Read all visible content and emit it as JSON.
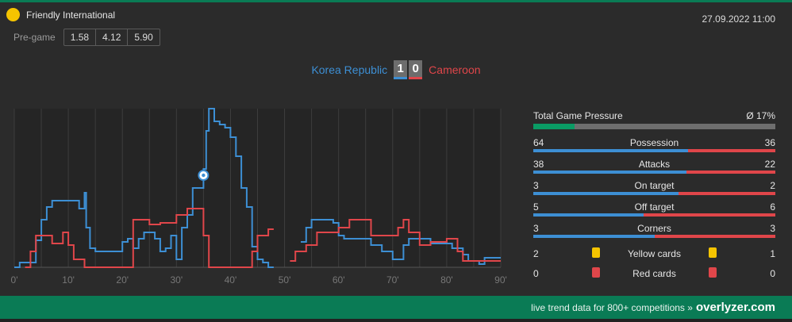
{
  "competition": {
    "name": "Friendly International"
  },
  "datetime": "27.09.2022 11:00",
  "pregame": {
    "label": "Pre-game",
    "odds": [
      "1.58",
      "4.12",
      "5.90"
    ]
  },
  "match": {
    "home_team": "Korea Republic",
    "away_team": "Cameroon",
    "home_score": "1",
    "away_score": "0"
  },
  "colors": {
    "home": "#3d8fd4",
    "away": "#e0464a",
    "brand": "#0a7b55",
    "yellow": "#f5c400"
  },
  "stats": {
    "pressure": {
      "label": "Total Game Pressure",
      "value_label": "Ø 17%",
      "value": 17
    },
    "rows": [
      {
        "name": "Possession",
        "home": "64",
        "away": "36"
      },
      {
        "name": "Attacks",
        "home": "38",
        "away": "22"
      },
      {
        "name": "On target",
        "home": "3",
        "away": "2"
      },
      {
        "name": "Off target",
        "home": "5",
        "away": "6"
      },
      {
        "name": "Corners",
        "home": "3",
        "away": "3"
      }
    ],
    "cards": [
      {
        "name": "Yellow cards",
        "home": "2",
        "away": "1",
        "color": "yellow"
      },
      {
        "name": "Red cards",
        "home": "0",
        "away": "0",
        "color": "red"
      }
    ]
  },
  "chart_data": {
    "type": "line",
    "x_ticks": [
      "0'",
      "10'",
      "20'",
      "30'",
      "40'",
      "50'",
      "60'",
      "70'",
      "80'",
      "90'"
    ],
    "xlim": [
      0,
      90
    ],
    "ylim": [
      0,
      100
    ],
    "grid": true,
    "goal_events": [
      {
        "minute": 35,
        "team": "home",
        "y": 58
      }
    ],
    "series": [
      {
        "team": "home",
        "points": [
          [
            0,
            0
          ],
          [
            1,
            0
          ],
          [
            1,
            3
          ],
          [
            4,
            3
          ],
          [
            4,
            17
          ],
          [
            5,
            17
          ],
          [
            5,
            30
          ],
          [
            6,
            30
          ],
          [
            6,
            38
          ],
          [
            7,
            38
          ],
          [
            7,
            42
          ],
          [
            12,
            42
          ],
          [
            12,
            37
          ],
          [
            13,
            37
          ],
          [
            13,
            47
          ],
          [
            13.3,
            47
          ],
          [
            13.3,
            25
          ],
          [
            14,
            25
          ],
          [
            14,
            12
          ],
          [
            15,
            12
          ],
          [
            15,
            10
          ],
          [
            20,
            10
          ],
          [
            20,
            16
          ],
          [
            21,
            16
          ],
          [
            21,
            18
          ],
          [
            22,
            18
          ],
          [
            22,
            12
          ],
          [
            23,
            12
          ],
          [
            23,
            18
          ],
          [
            24,
            18
          ],
          [
            24,
            22
          ],
          [
            26,
            22
          ],
          [
            26,
            18
          ],
          [
            27,
            18
          ],
          [
            27,
            10
          ],
          [
            28,
            10
          ],
          [
            28,
            12
          ],
          [
            29,
            12
          ],
          [
            29,
            20
          ],
          [
            30,
            20
          ],
          [
            30,
            5
          ],
          [
            31,
            5
          ],
          [
            31,
            25
          ],
          [
            32,
            25
          ],
          [
            32,
            33
          ],
          [
            33,
            33
          ],
          [
            33,
            50
          ],
          [
            35,
            50
          ],
          [
            35,
            62
          ],
          [
            35.5,
            62
          ],
          [
            35.5,
            86
          ],
          [
            36,
            86
          ],
          [
            36,
            100
          ],
          [
            37,
            100
          ],
          [
            37,
            92
          ],
          [
            38,
            92
          ],
          [
            38,
            90
          ],
          [
            39,
            90
          ],
          [
            39,
            88
          ],
          [
            40,
            88
          ],
          [
            40,
            82
          ],
          [
            41,
            82
          ],
          [
            41,
            70
          ],
          [
            42,
            70
          ],
          [
            42,
            50
          ],
          [
            43,
            50
          ],
          [
            43,
            38
          ],
          [
            44,
            38
          ],
          [
            44,
            13
          ],
          [
            45,
            13
          ],
          [
            45,
            5
          ],
          [
            46,
            5
          ],
          [
            46,
            3
          ],
          [
            47,
            3
          ],
          [
            47,
            0
          ],
          [
            48,
            0
          ]
        ],
        "segments_after_break": [
          [
            [
              53,
              16
            ],
            [
              54,
              16
            ],
            [
              54,
              25
            ],
            [
              55,
              25
            ],
            [
              55,
              30
            ],
            [
              59,
              30
            ],
            [
              59,
              28
            ],
            [
              60,
              28
            ],
            [
              60,
              20
            ],
            [
              61,
              20
            ],
            [
              61,
              18
            ],
            [
              66,
              18
            ],
            [
              66,
              14
            ],
            [
              68,
              14
            ],
            [
              68,
              10
            ],
            [
              70,
              10
            ],
            [
              70,
              5
            ],
            [
              72,
              5
            ],
            [
              72,
              14
            ],
            [
              73,
              14
            ],
            [
              73,
              18
            ],
            [
              77,
              18
            ],
            [
              77,
              15
            ],
            [
              81,
              15
            ],
            [
              81,
              12
            ],
            [
              83,
              12
            ],
            [
              83,
              8
            ],
            [
              84,
              8
            ],
            [
              84,
              4
            ],
            [
              86,
              4
            ],
            [
              86,
              2
            ],
            [
              87,
              2
            ],
            [
              87,
              6
            ],
            [
              90,
              6
            ]
          ]
        ]
      },
      {
        "team": "away",
        "points": [
          [
            2,
            0
          ],
          [
            3,
            0
          ],
          [
            3,
            10
          ],
          [
            4,
            10
          ],
          [
            4,
            20
          ],
          [
            7,
            20
          ],
          [
            7,
            15
          ],
          [
            9,
            15
          ],
          [
            9,
            22
          ],
          [
            10,
            22
          ],
          [
            10,
            14
          ],
          [
            11,
            14
          ],
          [
            11,
            5
          ],
          [
            13,
            5
          ],
          [
            13,
            0
          ],
          [
            22,
            0
          ],
          [
            22,
            30
          ],
          [
            25,
            30
          ],
          [
            25,
            27
          ],
          [
            27,
            27
          ],
          [
            27,
            28
          ],
          [
            30,
            28
          ],
          [
            30,
            33
          ],
          [
            32,
            33
          ],
          [
            32,
            37
          ],
          [
            35,
            37
          ],
          [
            35,
            20
          ],
          [
            36,
            20
          ],
          [
            36,
            0
          ],
          [
            44,
            0
          ],
          [
            44,
            10
          ],
          [
            45,
            10
          ],
          [
            45,
            20
          ],
          [
            47,
            20
          ],
          [
            47,
            24
          ],
          [
            48,
            24
          ]
        ],
        "segments_after_break": [
          [
            [
              51,
              4
            ],
            [
              52,
              4
            ],
            [
              52,
              10
            ],
            [
              54,
              10
            ],
            [
              54,
              14
            ],
            [
              56,
              14
            ],
            [
              56,
              22
            ],
            [
              60,
              22
            ],
            [
              60,
              25
            ],
            [
              62,
              25
            ],
            [
              62,
              30
            ],
            [
              66,
              30
            ],
            [
              66,
              20
            ],
            [
              71,
              20
            ],
            [
              71,
              25
            ],
            [
              72,
              25
            ],
            [
              72,
              30
            ],
            [
              73,
              30
            ],
            [
              73,
              22
            ],
            [
              75,
              22
            ],
            [
              75,
              14
            ],
            [
              77,
              14
            ],
            [
              77,
              16
            ],
            [
              80,
              16
            ],
            [
              80,
              18
            ],
            [
              82,
              18
            ],
            [
              82,
              10
            ],
            [
              83,
              10
            ],
            [
              83,
              4
            ],
            [
              90,
              4
            ]
          ]
        ]
      }
    ]
  },
  "footer": {
    "text": "live trend data for 800+ competitions »",
    "brand": "overlyzer.com"
  }
}
